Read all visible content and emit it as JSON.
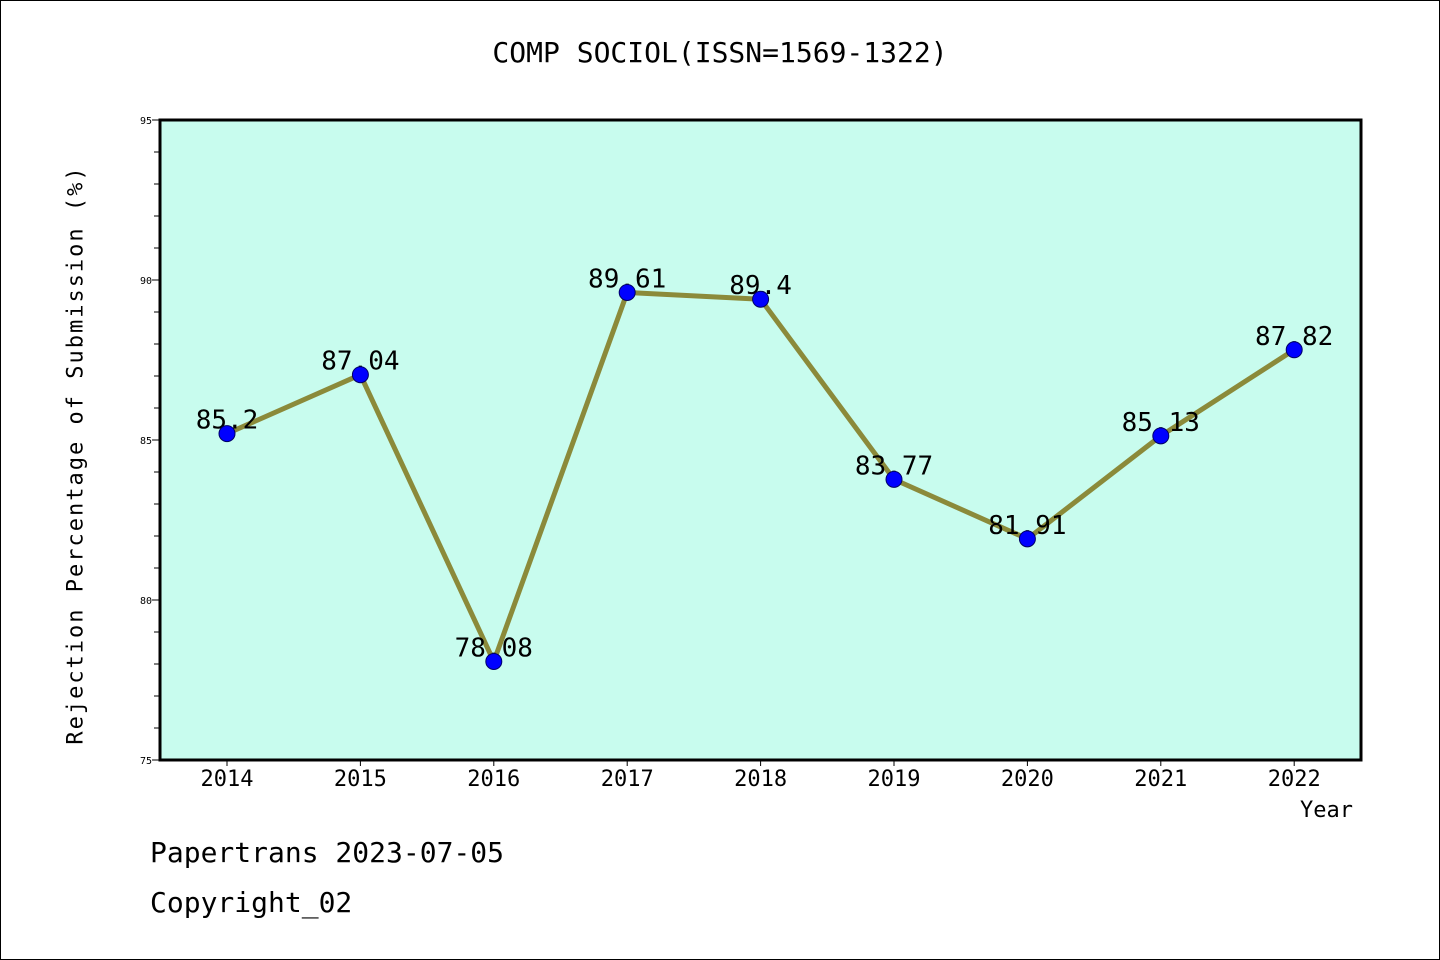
{
  "page": {
    "title": "COMP SOCIOL(ISSN=1569-1322)",
    "footer_line1": "Papertrans 2023-07-05",
    "footer_line2": "Copyright_02"
  },
  "colors": {
    "plot_background": "#c8fcee",
    "line": "#8b8a3a",
    "marker": "#0000ff",
    "axis": "#000000"
  },
  "chart_data": {
    "type": "line",
    "title": "COMP SOCIOL(ISSN=1569-1322)",
    "xlabel": "Year",
    "ylabel": "Rejection Percentage of Submission (%)",
    "categories": [
      "2014",
      "2015",
      "2016",
      "2017",
      "2018",
      "2019",
      "2020",
      "2021",
      "2022"
    ],
    "series": [
      {
        "values": [
          85.2,
          87.04,
          78.08,
          89.61,
          89.4,
          83.77,
          81.91,
          85.13,
          87.82
        ]
      }
    ],
    "data_labels": [
      "85.2",
      "87.04",
      "78.08",
      "89.61",
      "89.4",
      "83.77",
      "81.91",
      "85.13",
      "87.82"
    ],
    "ylim": [
      75,
      95
    ],
    "yticks": [
      "75",
      "80",
      "85",
      "90",
      "95"
    ],
    "grid": false,
    "legend": "none"
  }
}
